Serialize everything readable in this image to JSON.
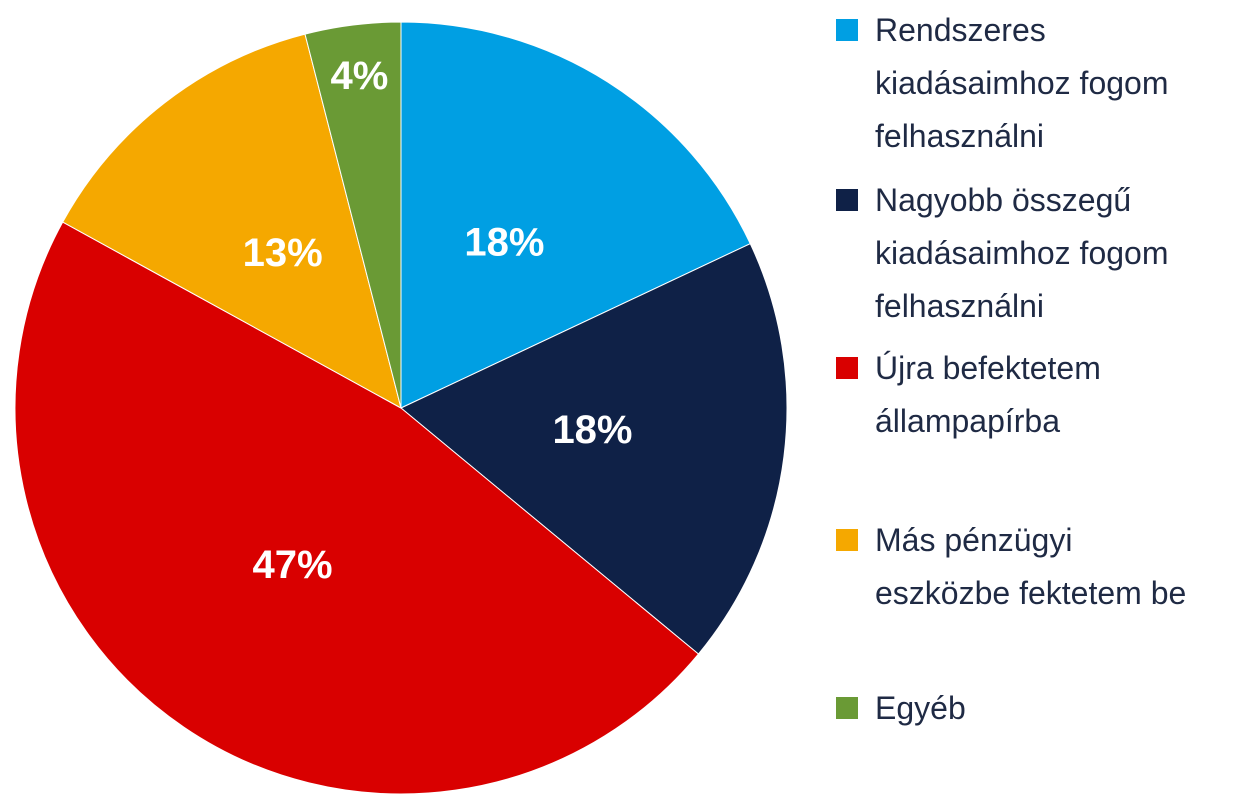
{
  "chart_data": {
    "type": "pie",
    "categories": [
      "Rendszeres kiadásaimhoz fogom felhasználni",
      "Nagyobb összegű kiadásaimhoz fogom felhasználni",
      "Újra befektetem állampapírba",
      "Más pénzügyi eszközbe fektetem be",
      "Egyéb"
    ],
    "values": [
      18,
      18,
      47,
      13,
      4
    ],
    "value_labels": [
      "18%",
      "18%",
      "47%",
      "13%",
      "4%"
    ],
    "colors": [
      "#009fe3",
      "#0f2147",
      "#d90000",
      "#f5a800",
      "#6a9a35"
    ],
    "legend": "right"
  }
}
